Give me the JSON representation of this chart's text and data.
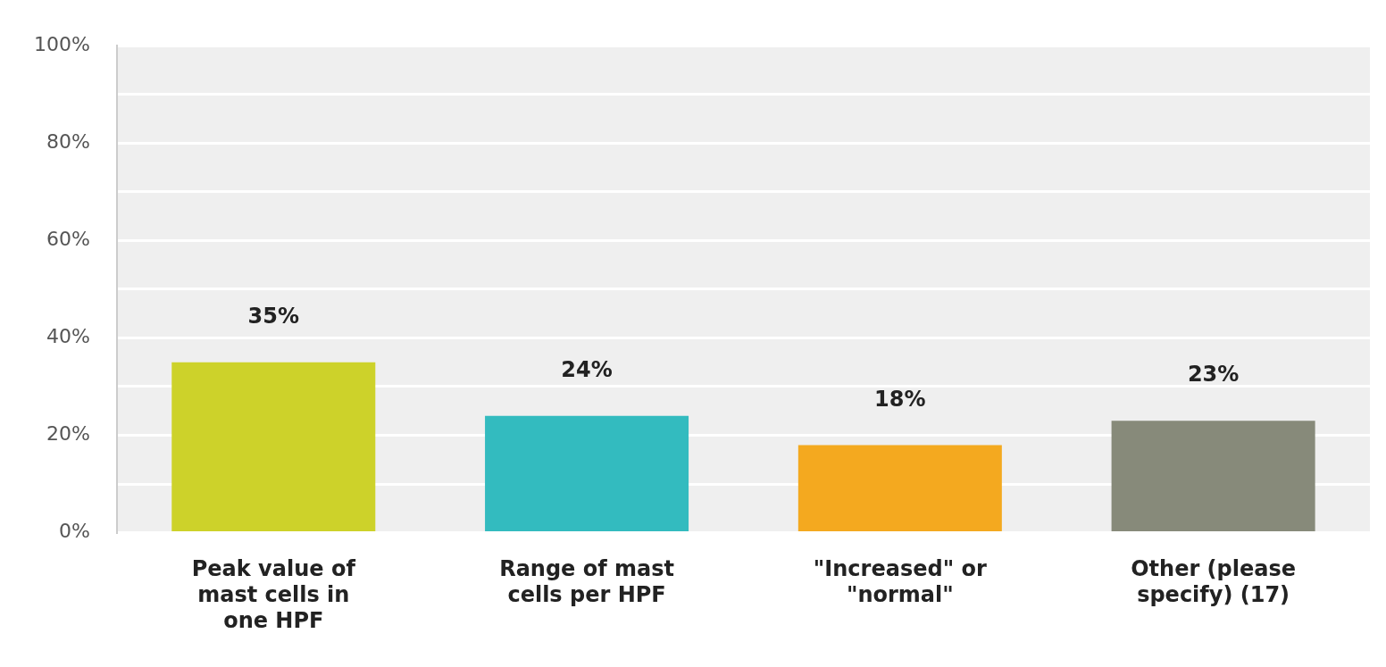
{
  "chart_data": {
    "type": "bar",
    "categories": [
      "Peak value of mast cells in one HPF",
      "Range of mast cells per HPF",
      "\"Increased\" or \"normal\"",
      "Other (please specify) (17)"
    ],
    "values": [
      35,
      24,
      18,
      23
    ],
    "value_labels": [
      "35%",
      "24%",
      "18%",
      "23%"
    ],
    "colors": [
      "#cdd22a",
      "#33bbbf",
      "#f4a91f",
      "#878a7a"
    ],
    "ylim": [
      0,
      100
    ],
    "yticks": [
      {
        "value": 0,
        "label": "0%"
      },
      {
        "value": 10,
        "label": null
      },
      {
        "value": 20,
        "label": "20%"
      },
      {
        "value": 30,
        "label": null
      },
      {
        "value": 40,
        "label": "40%"
      },
      {
        "value": 50,
        "label": null
      },
      {
        "value": 60,
        "label": "60%"
      },
      {
        "value": 70,
        "label": null
      },
      {
        "value": 80,
        "label": "80%"
      },
      {
        "value": 90,
        "label": null
      },
      {
        "value": 100,
        "label": "100%"
      }
    ],
    "grid": "y",
    "legend": false
  }
}
